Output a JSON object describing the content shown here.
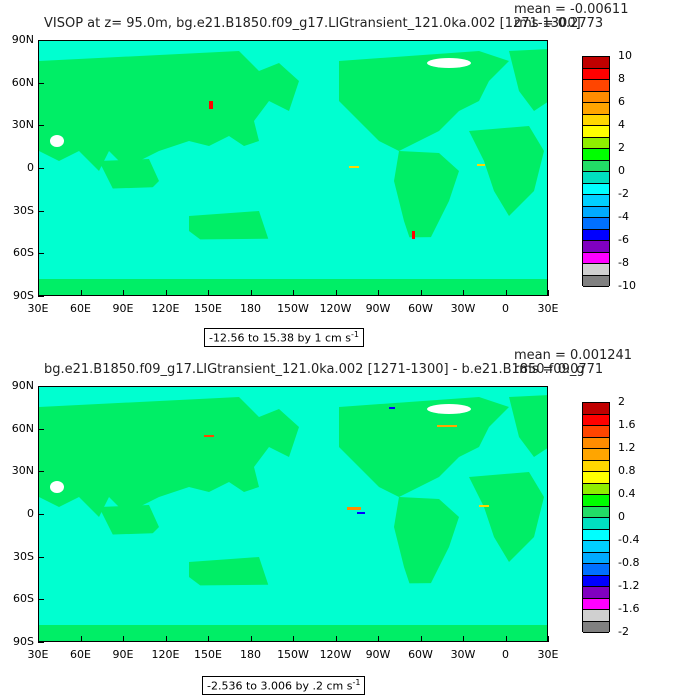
{
  "panels": [
    {
      "title": "VISOP at z=  95.0m, bg.e21.B1850.f09_g17.LIGtransient_121.0ka.002 [1271-1300]",
      "mean": "mean = -0.00611",
      "rms": "rms = 0.2773",
      "range": "-12.56 to 15.38 by 1 cm s",
      "range_exp": "-1",
      "colorbar_labels": [
        "10",
        "8",
        "6",
        "4",
        "2",
        "0",
        "-2",
        "-4",
        "-6",
        "-8",
        "-10"
      ],
      "colorbar_colors": [
        "#c00000",
        "#ff0000",
        "#ff4500",
        "#ff8c00",
        "#ffa500",
        "#ffd700",
        "#ffff00",
        "#90ee00",
        "#00ff00",
        "#22dd66",
        "#00e0c0",
        "#00ffff",
        "#00d0ff",
        "#00aaff",
        "#0070ff",
        "#0000ff",
        "#8000c0",
        "#ff00ff",
        "#d0d0d0",
        "#808080"
      ]
    },
    {
      "title": "bg.e21.B1850.f09_g17.LIGtransient_121.0ka.002 [1271-1300] - b.e21.B1850.f09_g",
      "mean": "mean = 0.001241",
      "rms": "rms = 0.0771",
      "range": "-2.536 to 3.006 by .2 cm s",
      "range_exp": "-1",
      "colorbar_labels": [
        "2",
        "1.6",
        "1.2",
        "0.8",
        "0.4",
        "0",
        "-0.4",
        "-0.8",
        "-1.2",
        "-1.6",
        "-2"
      ],
      "colorbar_colors": [
        "#c00000",
        "#ff0000",
        "#ff4500",
        "#ff8c00",
        "#ffa500",
        "#ffd700",
        "#ffff00",
        "#90ee00",
        "#00ff00",
        "#22dd66",
        "#00e0c0",
        "#00ffff",
        "#00d0ff",
        "#00aaff",
        "#0070ff",
        "#0000ff",
        "#8000c0",
        "#ff00ff",
        "#d0d0d0",
        "#808080"
      ]
    }
  ],
  "y_ticks": [
    "90N",
    "60N",
    "30N",
    "0",
    "30S",
    "60S",
    "90S"
  ],
  "x_ticks": [
    "30E",
    "60E",
    "90E",
    "120E",
    "150E",
    "180",
    "150W",
    "120W",
    "90W",
    "60W",
    "30W",
    "0",
    "30E"
  ],
  "colors": {
    "land": "#00ee66",
    "ocean": "#00ffd0",
    "missing": "#ffffff"
  }
}
